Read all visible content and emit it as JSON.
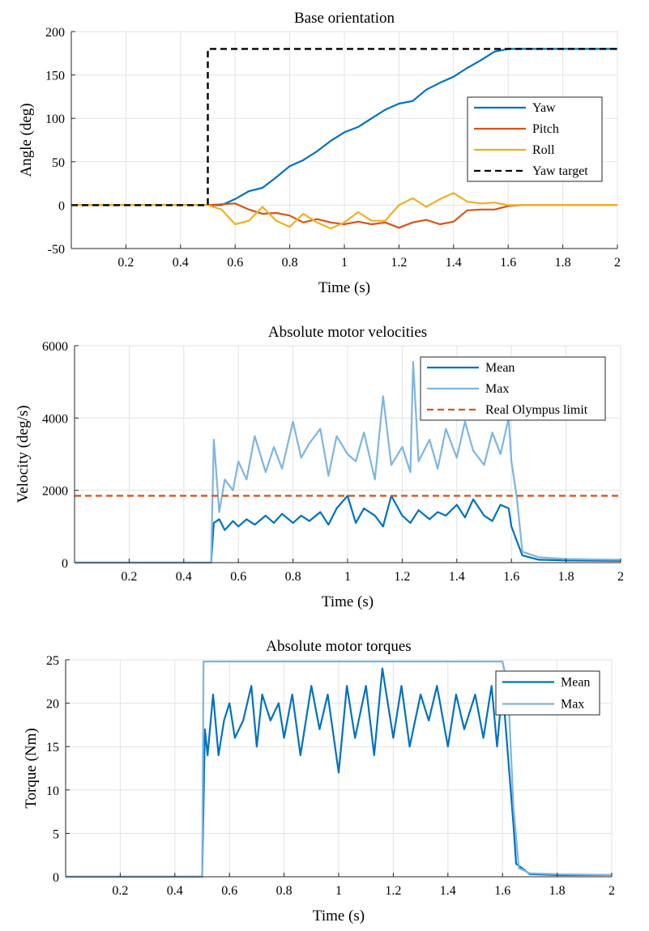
{
  "chart_data": [
    {
      "type": "line",
      "title": "Base orientation",
      "xlabel": "Time (s)",
      "ylabel": "Angle (deg)",
      "xlim": [
        0,
        2
      ],
      "ylim": [
        -50,
        200
      ],
      "xticks": [
        0.2,
        0.4,
        0.6,
        0.8,
        1,
        1.2,
        1.4,
        1.6,
        1.8,
        2
      ],
      "yticks": [
        -50,
        0,
        50,
        100,
        150,
        200
      ],
      "grid": true,
      "legend_position": "right",
      "series": [
        {
          "name": "Yaw",
          "color": "#0072BD",
          "style": "solid",
          "x": [
            0,
            0.5,
            0.55,
            0.6,
            0.65,
            0.7,
            0.75,
            0.8,
            0.85,
            0.9,
            0.95,
            1.0,
            1.05,
            1.1,
            1.15,
            1.2,
            1.25,
            1.3,
            1.35,
            1.4,
            1.45,
            1.5,
            1.55,
            1.6,
            1.65,
            2.0
          ],
          "y": [
            0,
            0,
            0,
            7,
            16,
            20,
            32,
            45,
            52,
            62,
            74,
            84,
            90,
            100,
            110,
            117,
            120,
            133,
            141,
            148,
            158,
            167,
            177,
            180,
            180,
            180
          ]
        },
        {
          "name": "Pitch",
          "color": "#D95319",
          "style": "solid",
          "x": [
            0,
            0.5,
            0.55,
            0.6,
            0.65,
            0.7,
            0.75,
            0.8,
            0.85,
            0.9,
            0.95,
            1.0,
            1.05,
            1.1,
            1.15,
            1.2,
            1.25,
            1.3,
            1.35,
            1.4,
            1.45,
            1.5,
            1.55,
            1.6,
            1.65,
            2.0
          ],
          "y": [
            0,
            0,
            1,
            2,
            -5,
            -10,
            -9,
            -12,
            -20,
            -16,
            -20,
            -22,
            -19,
            -22,
            -20,
            -26,
            -20,
            -17,
            -22,
            -19,
            -6,
            -5,
            -5,
            -1,
            0,
            0
          ]
        },
        {
          "name": "Roll",
          "color": "#EDB120",
          "style": "solid",
          "x": [
            0,
            0.5,
            0.55,
            0.6,
            0.65,
            0.7,
            0.75,
            0.8,
            0.85,
            0.9,
            0.95,
            1.0,
            1.05,
            1.1,
            1.15,
            1.2,
            1.25,
            1.3,
            1.35,
            1.4,
            1.45,
            1.5,
            1.55,
            1.6,
            1.65,
            2.0
          ],
          "y": [
            0,
            0,
            -5,
            -22,
            -18,
            -2,
            -18,
            -25,
            -10,
            -20,
            -27,
            -20,
            -8,
            -18,
            -18,
            0,
            8,
            -2,
            7,
            14,
            4,
            2,
            3,
            0,
            0,
            0
          ]
        },
        {
          "name": "Yaw target",
          "color": "#000000",
          "style": "dashed",
          "x": [
            0,
            0.5,
            0.5,
            2.0
          ],
          "y": [
            0,
            0,
            180,
            180
          ]
        }
      ]
    },
    {
      "type": "line",
      "title": "Absolute motor velocities",
      "xlabel": "Time (s)",
      "ylabel": "Velocity (deg/s)",
      "xlim": [
        0,
        2
      ],
      "ylim": [
        0,
        6000
      ],
      "xticks": [
        0.2,
        0.4,
        0.6,
        0.8,
        1,
        1.2,
        1.4,
        1.6,
        1.8,
        2
      ],
      "yticks": [
        0,
        2000,
        4000,
        6000
      ],
      "grid": true,
      "legend_position": "top-right",
      "series": [
        {
          "name": "Mean",
          "color": "#0072BD",
          "style": "solid",
          "x": [
            0,
            0.5,
            0.51,
            0.53,
            0.55,
            0.58,
            0.6,
            0.63,
            0.66,
            0.7,
            0.73,
            0.76,
            0.8,
            0.83,
            0.86,
            0.9,
            0.93,
            0.96,
            1.0,
            1.03,
            1.06,
            1.1,
            1.13,
            1.16,
            1.2,
            1.23,
            1.26,
            1.3,
            1.33,
            1.36,
            1.4,
            1.43,
            1.46,
            1.5,
            1.53,
            1.56,
            1.59,
            1.6,
            1.62,
            1.64,
            1.7,
            1.8,
            2.0
          ],
          "y": [
            0,
            0,
            1100,
            1200,
            900,
            1150,
            1000,
            1200,
            1050,
            1300,
            1100,
            1350,
            1100,
            1300,
            1150,
            1400,
            1050,
            1500,
            1850,
            1100,
            1500,
            1300,
            1000,
            1850,
            1300,
            1100,
            1450,
            1200,
            1400,
            1300,
            1600,
            1250,
            1750,
            1300,
            1150,
            1600,
            1500,
            1000,
            600,
            200,
            80,
            60,
            50
          ]
        },
        {
          "name": "Max",
          "color": "#7FB5E0",
          "style": "solid",
          "x": [
            0,
            0.5,
            0.51,
            0.53,
            0.55,
            0.58,
            0.6,
            0.63,
            0.66,
            0.7,
            0.73,
            0.76,
            0.8,
            0.83,
            0.86,
            0.9,
            0.93,
            0.96,
            1.0,
            1.03,
            1.06,
            1.1,
            1.13,
            1.16,
            1.2,
            1.23,
            1.24,
            1.26,
            1.3,
            1.33,
            1.36,
            1.4,
            1.43,
            1.46,
            1.5,
            1.53,
            1.56,
            1.59,
            1.6,
            1.62,
            1.64,
            1.7,
            1.8,
            2.0
          ],
          "y": [
            0,
            0,
            3400,
            1400,
            2300,
            2000,
            2800,
            2300,
            3500,
            2500,
            3200,
            2600,
            3900,
            2900,
            3300,
            3700,
            2400,
            3500,
            3000,
            2800,
            3600,
            2300,
            4600,
            2700,
            3200,
            2500,
            5550,
            2800,
            3400,
            2600,
            3700,
            2900,
            3900,
            3100,
            2700,
            3600,
            3000,
            4000,
            2800,
            1800,
            300,
            150,
            100,
            80
          ]
        },
        {
          "name": "Real Olympus limit",
          "color": "#D95319",
          "style": "dashed",
          "x": [
            0,
            2.0
          ],
          "y": [
            1850,
            1850
          ]
        }
      ]
    },
    {
      "type": "line",
      "title": "Absolute motor torques",
      "xlabel": "Time (s)",
      "ylabel": "Torque (Nm)",
      "xlim": [
        0,
        2
      ],
      "ylim": [
        0,
        25
      ],
      "xticks": [
        0.2,
        0.4,
        0.6,
        0.8,
        1,
        1.2,
        1.4,
        1.6,
        1.8,
        2
      ],
      "yticks": [
        0,
        5,
        10,
        15,
        20,
        25
      ],
      "grid": true,
      "legend_position": "top-right",
      "series": [
        {
          "name": "Mean",
          "color": "#0072BD",
          "style": "solid",
          "x": [
            0,
            0.5,
            0.51,
            0.52,
            0.54,
            0.56,
            0.58,
            0.6,
            0.62,
            0.65,
            0.68,
            0.7,
            0.72,
            0.75,
            0.78,
            0.8,
            0.83,
            0.86,
            0.9,
            0.93,
            0.96,
            1.0,
            1.03,
            1.06,
            1.1,
            1.13,
            1.16,
            1.2,
            1.23,
            1.26,
            1.3,
            1.33,
            1.36,
            1.4,
            1.43,
            1.46,
            1.5,
            1.53,
            1.56,
            1.58,
            1.6,
            1.62,
            1.64,
            1.65,
            1.7,
            1.8,
            2.0
          ],
          "y": [
            0,
            0,
            17,
            14,
            21,
            14,
            18,
            20,
            16,
            18,
            22,
            15,
            21,
            18,
            20,
            16,
            21,
            14,
            22,
            17,
            21,
            12,
            22,
            16,
            22,
            14,
            24,
            16,
            22,
            15,
            21,
            18,
            22,
            15,
            21,
            17,
            21,
            16,
            22,
            15,
            22,
            14,
            6,
            1.5,
            0.3,
            0.2,
            0.2
          ]
        },
        {
          "name": "Max",
          "color": "#7FB5E0",
          "style": "solid",
          "x": [
            0,
            0.5,
            0.505,
            1.6,
            1.62,
            1.64,
            1.66,
            1.7,
            1.8,
            2.0
          ],
          "y": [
            0,
            0,
            24.8,
            24.8,
            22,
            8,
            1,
            0.4,
            0.3,
            0.2
          ]
        }
      ]
    }
  ]
}
